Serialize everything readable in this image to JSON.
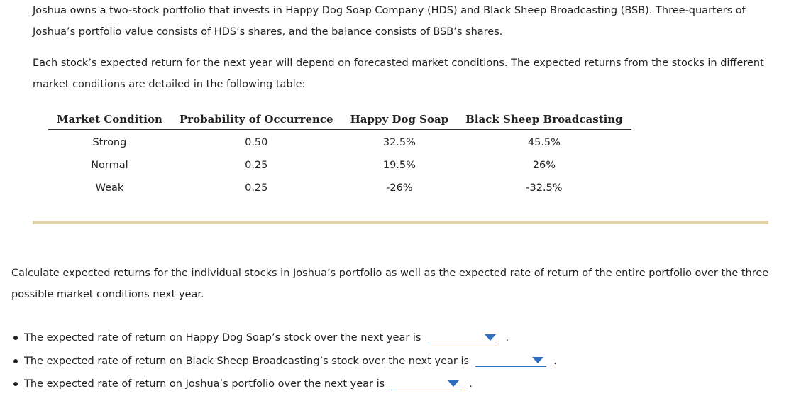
{
  "intro": {
    "paragraph1": "Joshua owns a two-stock portfolio that invests in Happy Dog Soap Company (HDS) and Black Sheep Broadcasting (BSB). Three-quarters of Joshua’s portfolio value consists of HDS’s shares, and the balance consists of BSB’s shares.",
    "paragraph2": "Each stock’s expected return for the next year will depend on forecasted market conditions. The expected returns from the stocks in different market conditions are detailed in the following table:"
  },
  "table": {
    "headers": [
      "Market Condition",
      "Probability of Occurrence",
      "Happy Dog Soap",
      "Black Sheep Broadcasting"
    ],
    "rows": [
      [
        "Strong",
        "0.50",
        "32.5%",
        "45.5%"
      ],
      [
        "Normal",
        "0.25",
        "19.5%",
        "26%"
      ],
      [
        "Weak",
        "0.25",
        "-26%",
        "-32.5%"
      ]
    ]
  },
  "task": "Calculate expected returns for the individual stocks in Joshua’s portfolio as well as the expected rate of return of the entire portfolio over the three possible market conditions next year.",
  "answers": [
    {
      "text": "The expected rate of return on Happy Dog Soap’s stock over the next year is",
      "selected": "",
      "suffix": "."
    },
    {
      "text": "The expected rate of return on Black Sheep Broadcasting’s stock over the next year is",
      "selected": "",
      "suffix": "."
    },
    {
      "text": "The expected rate of return on Joshua’s portfolio over the next year is",
      "selected": "",
      "suffix": "."
    }
  ],
  "colors": {
    "divider": "#e0d3ab",
    "dropdown_accent": "#2f6fbd"
  },
  "icons": {
    "dropdown": "caret-down-icon"
  }
}
